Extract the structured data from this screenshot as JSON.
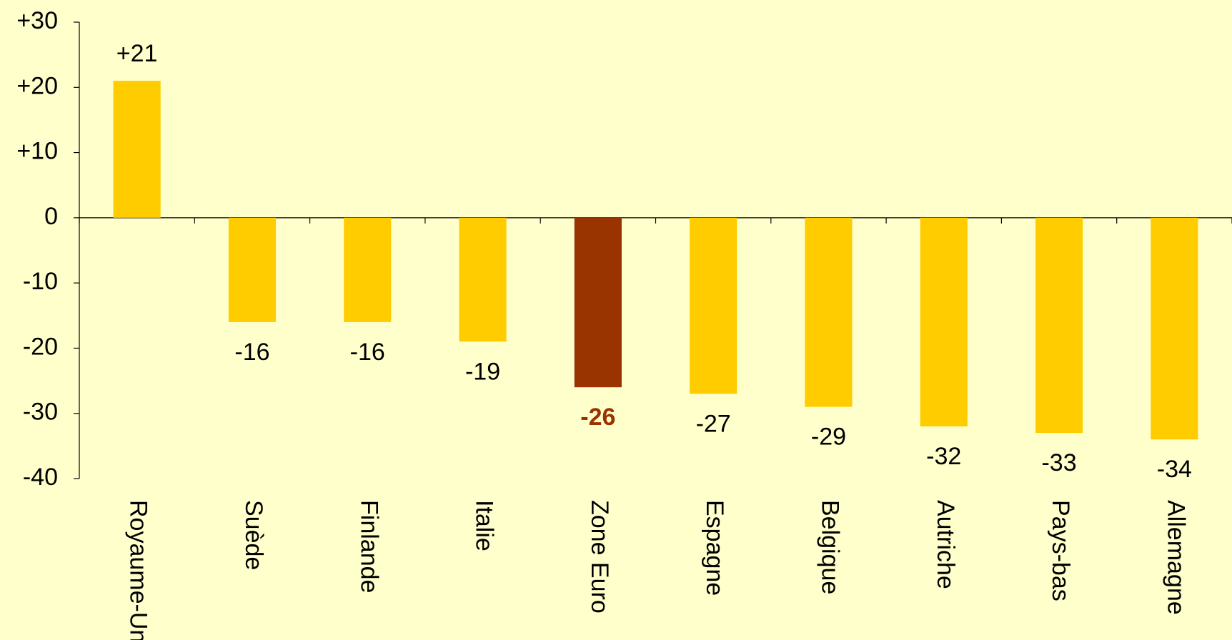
{
  "chart_data": {
    "type": "bar",
    "categories": [
      "Royaume-Uni",
      "Suède",
      "Finlande",
      "Italie",
      "Zone Euro",
      "Espagne",
      "Belgique",
      "Autriche",
      "Pays-bas",
      "Allemagne"
    ],
    "values": [
      21,
      -16,
      -16,
      -19,
      -26,
      -27,
      -29,
      -32,
      -33,
      -34
    ],
    "value_labels": [
      "+21",
      "-16",
      "-16",
      "-19",
      "-26",
      "-27",
      "-29",
      "-32",
      "-33",
      "-34"
    ],
    "color": "#ffcc00",
    "colors": [
      "#ffcc00",
      "#ffcc00",
      "#ffcc00",
      "#ffcc00",
      "#993300",
      "#ffcc00",
      "#ffcc00",
      "#ffcc00",
      "#ffcc00",
      "#ffcc00"
    ],
    "ylim": [
      -40,
      30
    ],
    "yticks": [
      {
        "value": 30,
        "label": "+30"
      },
      {
        "value": 20,
        "label": "+20"
      },
      {
        "value": 10,
        "label": "+10"
      },
      0,
      -10,
      -20,
      -30,
      -40
    ],
    "grid": false
  }
}
